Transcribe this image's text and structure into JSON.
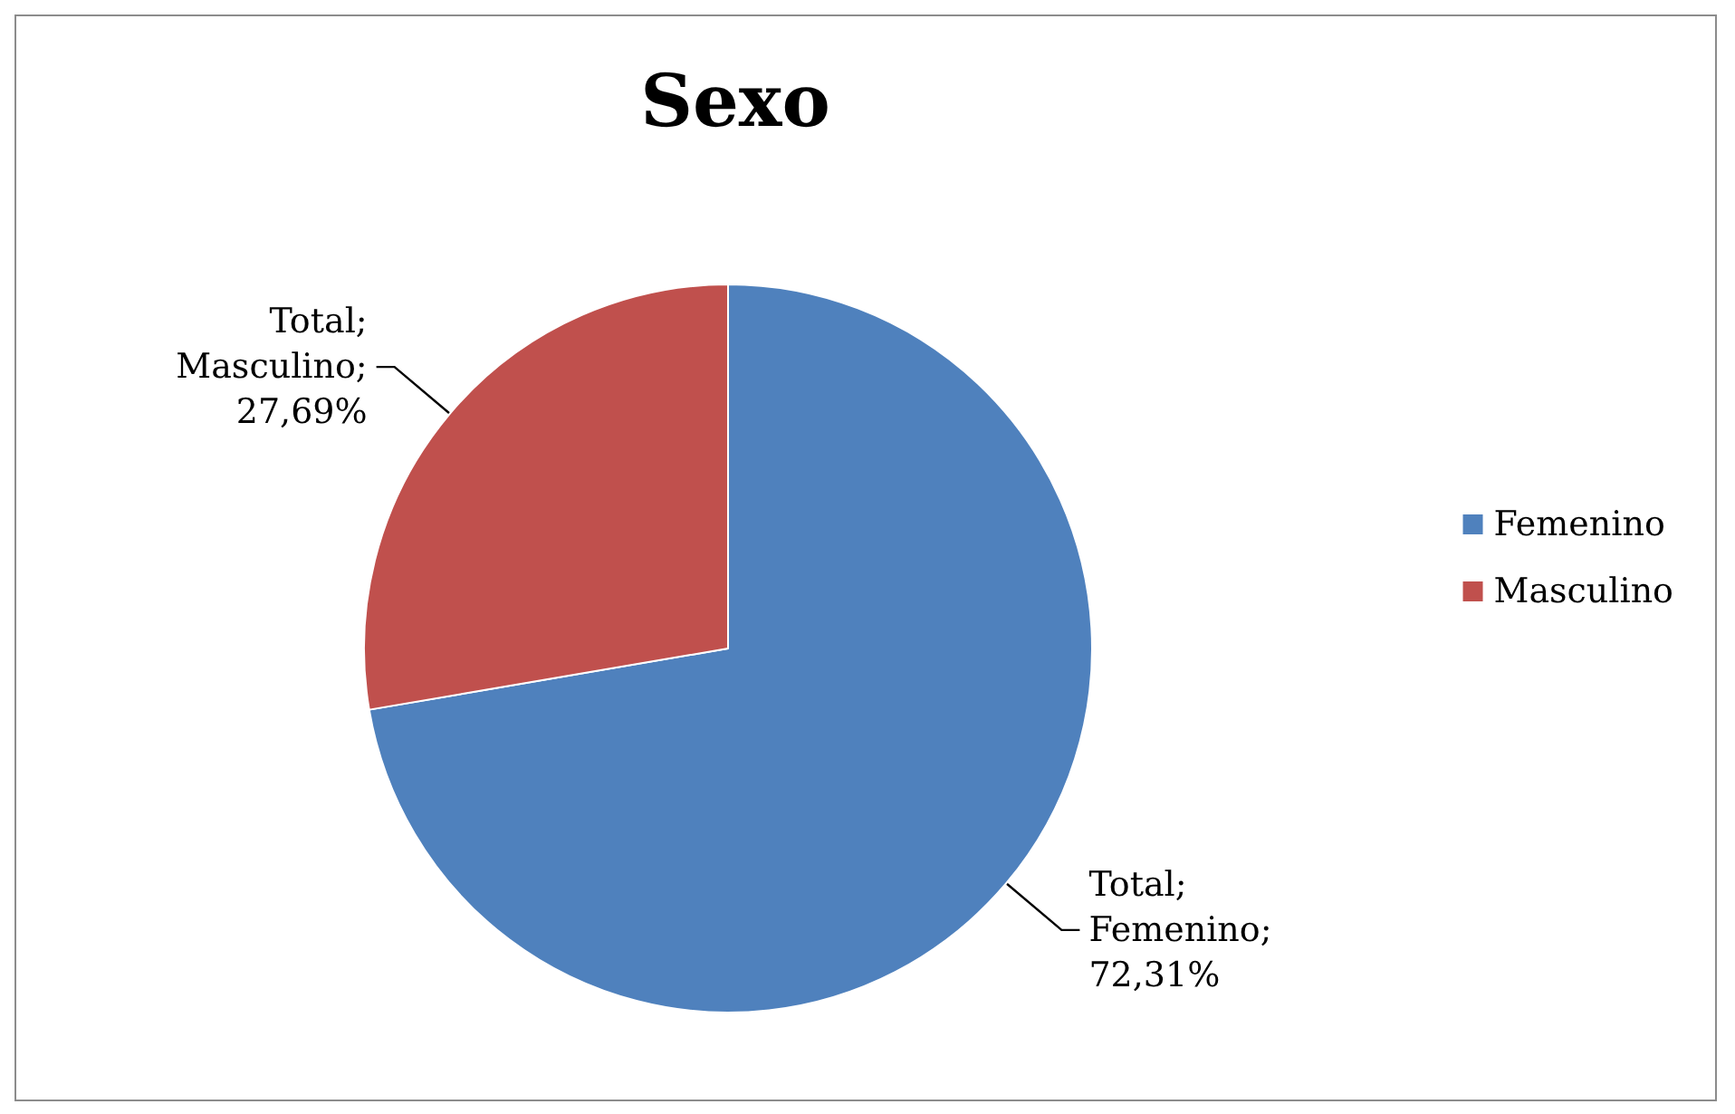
{
  "chart_data": {
    "type": "pie",
    "title": "Sexo",
    "categories": [
      "Femenino",
      "Masculino"
    ],
    "values": [
      72.31,
      27.69
    ],
    "colors": [
      "#4f81bd",
      "#c0504d"
    ],
    "value_labels": [
      "Total; Femenino; 72,31%",
      "Total; Masculino; 27,69%"
    ],
    "legend": "right"
  }
}
